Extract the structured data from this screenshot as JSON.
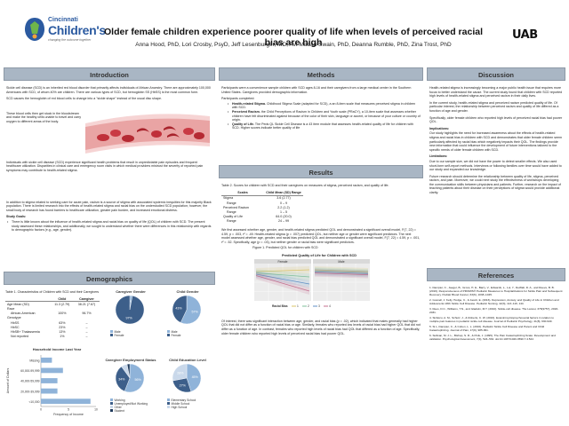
{
  "header": {
    "logo_city": "Cincinnati",
    "logo_name": "Children's",
    "logo_tagline": "changing the outcome together",
    "title": "Older female children experience poorer quality of life when levels of perceived racial bias are high",
    "authors": "Anna Hood, PhD, Lori Crosby, PsyD, Jeff Lesenburger, MD, Avi-Madan Swain, PhD, Deanna Rumble, PhD, Zina Trost, PhD",
    "logo_right": "UAB"
  },
  "introduction": {
    "heading": "Introduction",
    "p1": "Sickle cell disease (SCD) is an inherited red blood disorder that primarily affects individuals of African Ancestry. There are approximately 100,000 Americans with SCD, of whom 40% are children. There are various types of SCD, but hemoglobin SS (HbSS) is the most common form.",
    "p2": "SCD causes the hemoglobin of red blood cells to change into a \"sickle shape\" instead of the usual disc shape.",
    "figure_caption": "These blood cells then get stuck in the bloodstream and make the healthy cells unable to travel and carry oxygen to different areas of the body.",
    "p3": "Individuals with sickle cell disease (SCD) experience significant health problems that result in unpredictable pain episodes and frequent healthcare utilization. Disparities in clinical care and emergency room visits in which medical providers mistrust the severity of reported pain symptoms may contribute to health-related stigma.",
    "p4": "In addition to stigma related to seeking care for acute pain, racism is a source of stigma with associated systemic inequities for this majority Black population. There is limited research into the effects of health-related stigma and racial bias on the understudied SCD population; however, the small body of research has found barriers to healthcare utilization, greater pain burden, and increased emotional distress.",
    "goals_heading": "Study Goals:",
    "goals": [
      "There is little known about the influence of health-related stigma and racial bias on quality of life (QOL) of children with SCD. The present study assessed these relationships, and additionally, we sought to understand whether there were differences in this relationship with regards to demographic factors (e.g., age, gender)."
    ]
  },
  "methods": {
    "heading": "Methods",
    "p1": "Participants were a convenience sample children with SCD ages 8-16 and their caregivers from a large medical center in the Southern United States. Caregivers provided demographic information.",
    "p2": "Participants completed:",
    "items": [
      {
        "label": "Health-related Stigma.",
        "text": "Childhood Stigma Scale (adapted for SCD), a an 8-item scale that measures perceived stigma in children with SCD."
      },
      {
        "label": "Perceived Racism.",
        "text": "the Child Perceptions of Racism in Children and Youth scale (PRaCY), a 10-item scale that assesses whether children have felt discriminated against because of the color of their skin, language or accent, or because of your culture or country of origin."
      },
      {
        "label": "Quality of Life.",
        "text": "The Peds QL Sickle Cell Disease is a 43 item module that assesses health-related quality of life for children with SCD. Higher scores indicate better quality of life"
      }
    ]
  },
  "results": {
    "heading": "Results",
    "table_caption": "Table 2. Scores for children with SCD and their caregivers on measures of stigma, perceived racism, and quality of life.",
    "table_headers": [
      "Scales",
      "Child Mean (SD) Range"
    ],
    "table_rows": [
      {
        "scale": "Stigma",
        "range_label": "Range",
        "mean": "3.6 (2.77)",
        "range": "0 – 9"
      },
      {
        "scale": "Perceived Racism",
        "range_label": "Range",
        "mean": "2.2 (1.2)",
        "range": "1 – 5"
      },
      {
        "scale": "Quality of Life",
        "range_label": "Range",
        "mean": "64.0 (20.0)",
        "range": "24 – 99"
      }
    ],
    "p1": "We first assessed whether age, gender, and health-related stigma predicted QOL and demonstrated a significant overall model, F(7, 22) = 4.59, p = .003, r² = .49. Health-related stigma (p = .007) predicted QOL, but neither age or gender were significant predictors. The next model assessed whether age, gender, and racial bias predicted QOL and demonstrated a significant overall model, F(7, 22) = 4.59, p = .001, r² = .52. Specifically, age (p = .03), but neither gender or racial bias were significant predictors.",
    "figure_caption": "Figure 1. Predicted QOL for children with SCD",
    "plot_title": "Predicted Quality of Life for Children with SCD",
    "plot_strips": [
      "Female",
      "Male"
    ],
    "plot_legend_label": "Racial Bias",
    "plot_legend_values": [
      "1",
      "2",
      "3",
      "4"
    ],
    "p2": "Of interest, there was significant interaction between age, gender, and racial bias (p = .02), which indicated that males generally had higher QOL that did not differ as a function of racial bias or age. Similarly, females who reported low levels of racial bias had higher QOL that did not differ as a function of age. In contrast, females who reported high levels of racial bias had QOL that differed as a function of age. Specifically, older female children who reported high levels of perceived racial bias had poorer QOL."
  },
  "demographics": {
    "heading": "Demographics",
    "table_caption": "Table 1. Characteristics of Children with SCD and their Caregivers",
    "table_headers": [
      "",
      "Child",
      "Caregiver"
    ],
    "table_rows": [
      {
        "label": "Age Mean (SD)",
        "child": "11.3 (2.79)",
        "caregiver": "38.21 (7.67)"
      },
      {
        "label": "Race",
        "child": "",
        "caregiver": ""
      },
      {
        "label": "African-American",
        "child": "100%",
        "caregiver": "96.7%"
      },
      {
        "label": "Genotype",
        "child": "",
        "caregiver": ""
      },
      {
        "label": "HbSS",
        "child": "63%",
        "caregiver": "–"
      },
      {
        "label": "HbSC",
        "child": "23%",
        "caregiver": "–"
      },
      {
        "label": "HbSB+ Thalassemia",
        "child": "13%",
        "caregiver": "–"
      },
      {
        "label": "Not reported",
        "child": "1%",
        "caregiver": "–"
      }
    ],
    "income_chart": {
      "title": "Household Income Last Year",
      "ylabel": "Amount of Dollars",
      "xlabel": "Frequency of Income",
      "categories": [
        "Missing",
        "60,000-99,999",
        "40,000-59,999",
        "20,000-39,999",
        "<10,000"
      ],
      "values": [
        2,
        4,
        3,
        3,
        9
      ],
      "x_ticks": [
        "0",
        "5",
        "10"
      ],
      "xlim": [
        0,
        10
      ]
    }
  },
  "chart_data": [
    {
      "type": "pie",
      "title": "Caregiver Gender",
      "labels": [
        "Male",
        "Female"
      ],
      "values": [
        3,
        97
      ],
      "slice_labels": [
        "3%",
        "97%"
      ],
      "colors": [
        "#8fb3d9",
        "#3d5f8a"
      ]
    },
    {
      "type": "pie",
      "title": "Child Gender",
      "labels": [
        "Male",
        "Female"
      ],
      "values": [
        57,
        43
      ],
      "slice_labels": [
        "57%",
        "43%"
      ],
      "colors": [
        "#8fb3d9",
        "#3d5f8a"
      ]
    },
    {
      "type": "pie",
      "title": "Caregiver Employment Status",
      "labels": [
        "Working",
        "Unemployed/Not Working",
        "Other",
        "Student"
      ],
      "values": [
        56,
        34,
        7,
        3
      ],
      "slice_labels": [
        "56%",
        "34%",
        "",
        ""
      ],
      "colors": [
        "#8fb3d9",
        "#3d5f8a",
        "#c9d8ea",
        "#1f3a5c"
      ]
    },
    {
      "type": "pie",
      "title": "Child Education Level",
      "labels": [
        "Elementary School",
        "Middle School",
        "High School"
      ],
      "values": [
        45,
        27,
        28
      ],
      "slice_labels": [
        "45%",
        "27%",
        "28%"
      ],
      "colors": [
        "#8fb3d9",
        "#3d5f8a",
        "#c9d8ea"
      ]
    },
    {
      "type": "bar",
      "orientation": "horizontal",
      "title": "Household Income Last Year",
      "categories": [
        "Missing",
        "60,000-99,999",
        "40,000-59,999",
        "20,000-39,999",
        "<10,000"
      ],
      "values": [
        2,
        4,
        3,
        3,
        9
      ],
      "xlabel": "Frequency of Income",
      "ylabel": "Amount of Dollars",
      "xlim": [
        0,
        10
      ]
    },
    {
      "type": "line",
      "title": "Predicted Quality of Life for Children with SCD",
      "panels": [
        "Female",
        "Male"
      ],
      "legend_title": "Racial Bias",
      "series_names": [
        "1",
        "2",
        "3",
        "4"
      ],
      "colors": [
        "#d9c36a",
        "#7fbf9a",
        "#5f8fc4",
        "#c46f8f"
      ]
    }
  ],
  "discussion": {
    "heading": "Discussion",
    "p1": "Health-related stigma is increasingly becoming a major public health issue that requires more focus to better understand the cause. The current study found that children with SCD reported high levels of health-related stigma and perceived racism in their daily lives.",
    "p2": "In the current study, health-related stigma and perceived racism predicted quality of life. Of particular interest, the relationship between perceived racism and quality of life differed as a function of age and gender.",
    "p3": "Specifically, older female children who reported high levels of perceived racial bias had poorer QOL.",
    "implications_heading": "Implications:",
    "implications": "Our study highlights the need for increased awareness about the effects of health-related stigma and racial bias in children with SCD and demonstrates that older female children seem particularly affected by racial bias which negatively impacts their QOL. The findings provide new information that could influence the development of future interventions tailored to the specific needs of older female children with SCD.",
    "limitations_heading": "Limitations:",
    "limitations": "Due to our sample size, we did not have the power to detect smaller effects. We also used short-form self-report methods. Interviews or following families over time would have added to our study and expanded our knowledge.",
    "p4": "Future research should determine the relationship between quality of life, stigma, perceived racism, and pain. Moreover, we could next study the effectiveness of workshops developing the communication skills between physicians and patients. Further, research on the impact of teaching patients about their disease on their perceptions of stigma would provide additional clarity."
  },
  "references": {
    "heading": "References",
    "items": [
      "1. Dampier, C., Jaeger, B., Gross, H. E., Barry, V., Edwards, L., Lui, Y., DeWalt, D. A., and Reeve, B. B. (2016). Responsiveness of PROMIS® Pediatric Measures to Hospitalizations for Sickle Pain and Subsequent Recovery. Pediatr Blood Cancer, 63(6), 1038–1045.",
      "2. Gosnell, J. Kelly, Hodge, C., & Jacob, E. (2016). Depression, Anxiety, and Quality of Life in Children and Adolescents With Sickle Cell Disease. Pediatric Nursing, 42(3), 113–119, 144.",
      "3. Rees, D.C., Williams, T.N., and Gladwin, M.T. (2010). Sickle-cell disease. The Lancet, 376(9757), 2018-2031.",
      "4. Sinfetcu, A. M., Schutz, J., & Roberts, C. W. (2016). Examining biopsychosocial factors in relation to multiple pain features in pediatric sickle cell disease. Journal of Pediatric Psychology, 41(8), 930-940.",
      "5. Si L, Dampier, C., & Cohen, L. L. (2016). Pediatric Sickle Cell Disease and Parent and Child Catastrophizing. Journal of Pain, 17(9), 985-991.",
      "6. Sullivan, M. J. L., Bishop, S. R., & Pivik, J. (1995). The Pain Catastrophizing Scale: Development and validation. Psychological Assessment, 7(4), 524–532. doi:10.1037/1040-3590.7.4.524"
    ]
  }
}
